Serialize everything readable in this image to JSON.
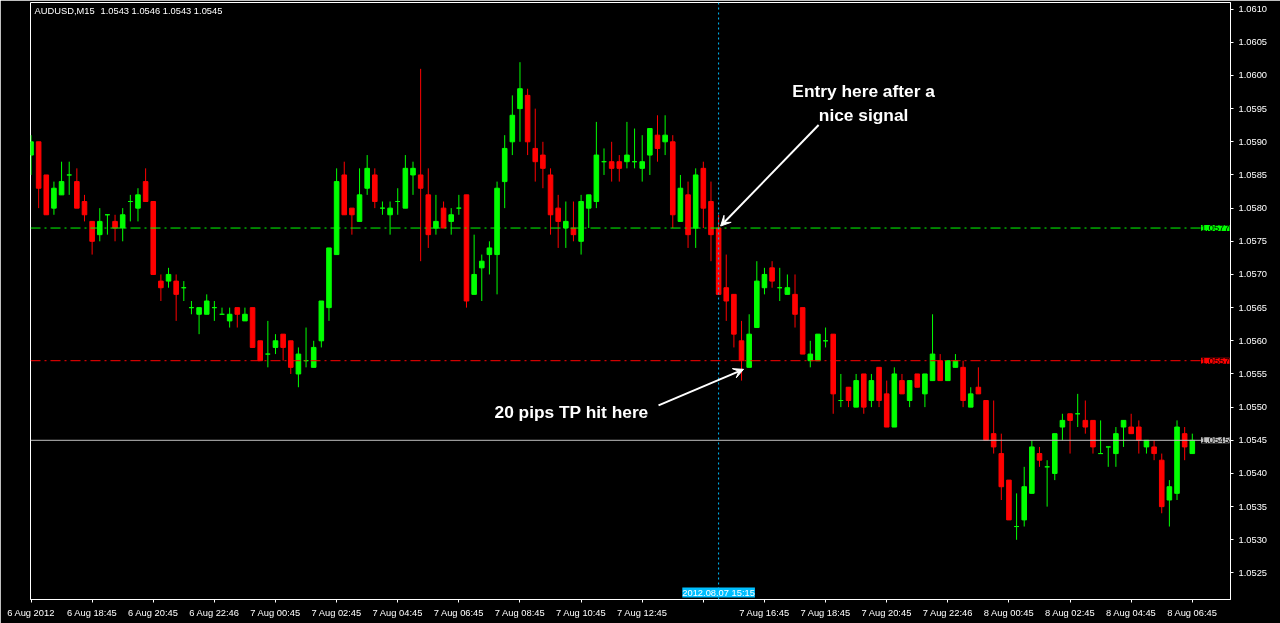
{
  "chart_data": {
    "type": "candlestick",
    "title": "AUDUSD,M15",
    "subtitle": "1.0543 1.0546 1.0543 1.0545",
    "x": [
      "2012-08-06T16:45",
      "2012-08-06T17:00",
      "2012-08-06T17:15",
      "2012-08-06T17:30",
      "2012-08-06T17:45",
      "2012-08-06T18:00",
      "2012-08-06T18:15",
      "2012-08-06T18:30",
      "2012-08-06T18:45",
      "2012-08-06T19:00",
      "2012-08-06T19:15",
      "2012-08-06T19:30",
      "2012-08-06T19:45",
      "2012-08-06T20:00",
      "2012-08-06T20:15",
      "2012-08-06T20:30",
      "2012-08-06T20:45",
      "2012-08-06T21:00",
      "2012-08-06T21:15",
      "2012-08-06T21:30",
      "2012-08-06T21:45",
      "2012-08-06T22:00",
      "2012-08-06T22:15",
      "2012-08-06T22:30",
      "2012-08-06T22:45",
      "2012-08-06T23:00",
      "2012-08-06T23:15",
      "2012-08-06T23:30",
      "2012-08-06T23:45",
      "2012-08-07T00:00",
      "2012-08-07T00:15",
      "2012-08-07T00:30",
      "2012-08-07T00:45",
      "2012-08-07T01:00",
      "2012-08-07T01:15",
      "2012-08-07T01:30",
      "2012-08-07T01:45",
      "2012-08-07T02:00",
      "2012-08-07T02:15",
      "2012-08-07T02:30",
      "2012-08-07T02:45",
      "2012-08-07T03:00",
      "2012-08-07T03:15",
      "2012-08-07T03:30",
      "2012-08-07T03:45",
      "2012-08-07T04:00",
      "2012-08-07T04:15",
      "2012-08-07T04:30",
      "2012-08-07T04:45",
      "2012-08-07T05:00",
      "2012-08-07T05:15",
      "2012-08-07T05:30",
      "2012-08-07T05:45",
      "2012-08-07T06:00",
      "2012-08-07T06:15",
      "2012-08-07T06:30",
      "2012-08-07T06:45",
      "2012-08-07T07:00",
      "2012-08-07T07:15",
      "2012-08-07T07:30",
      "2012-08-07T07:45",
      "2012-08-07T08:00",
      "2012-08-07T08:15",
      "2012-08-07T08:30",
      "2012-08-07T08:45",
      "2012-08-07T09:00",
      "2012-08-07T09:15",
      "2012-08-07T09:30",
      "2012-08-07T09:45",
      "2012-08-07T10:00",
      "2012-08-07T10:15",
      "2012-08-07T10:30",
      "2012-08-07T10:45",
      "2012-08-07T11:00",
      "2012-08-07T11:15",
      "2012-08-07T11:30",
      "2012-08-07T11:45",
      "2012-08-07T12:00",
      "2012-08-07T12:15",
      "2012-08-07T12:30",
      "2012-08-07T12:45",
      "2012-08-07T13:00",
      "2012-08-07T13:15",
      "2012-08-07T13:30",
      "2012-08-07T13:45",
      "2012-08-07T14:00",
      "2012-08-07T14:15",
      "2012-08-07T14:30",
      "2012-08-07T14:45",
      "2012-08-07T15:00",
      "2012-08-07T15:15",
      "2012-08-07T15:30",
      "2012-08-07T15:45",
      "2012-08-07T16:00",
      "2012-08-07T16:15",
      "2012-08-07T16:30",
      "2012-08-07T16:45",
      "2012-08-07T17:00",
      "2012-08-07T17:15",
      "2012-08-07T17:30",
      "2012-08-07T17:45",
      "2012-08-07T18:00",
      "2012-08-07T18:15",
      "2012-08-07T18:30",
      "2012-08-07T18:45",
      "2012-08-07T19:00",
      "2012-08-07T19:15",
      "2012-08-07T19:30",
      "2012-08-07T19:45",
      "2012-08-07T20:00",
      "2012-08-07T20:15",
      "2012-08-07T20:30",
      "2012-08-07T20:45",
      "2012-08-07T21:00",
      "2012-08-07T21:15",
      "2012-08-07T21:30",
      "2012-08-07T21:45",
      "2012-08-07T22:00",
      "2012-08-07T22:15",
      "2012-08-07T22:30",
      "2012-08-07T22:45",
      "2012-08-07T23:00",
      "2012-08-07T23:15",
      "2012-08-07T23:30",
      "2012-08-07T23:45",
      "2012-08-08T00:00",
      "2012-08-08T00:15",
      "2012-08-08T00:30",
      "2012-08-08T00:45",
      "2012-08-08T01:00",
      "2012-08-08T01:15",
      "2012-08-08T01:30",
      "2012-08-08T01:45",
      "2012-08-08T02:00",
      "2012-08-08T02:15",
      "2012-08-08T02:30",
      "2012-08-08T02:45",
      "2012-08-08T03:00",
      "2012-08-08T03:15",
      "2012-08-08T03:30",
      "2012-08-08T03:45",
      "2012-08-08T04:00",
      "2012-08-08T04:15",
      "2012-08-08T04:30",
      "2012-08-08T04:45",
      "2012-08-08T05:00",
      "2012-08-08T05:15",
      "2012-08-08T05:30",
      "2012-08-08T05:45",
      "2012-08-08T06:00",
      "2012-08-08T06:15",
      "2012-08-08T06:30",
      "2012-08-08T06:45"
    ],
    "ohlc": [
      [
        1.0588,
        1.0591,
        1.0585,
        1.059
      ],
      [
        1.059,
        1.059,
        1.058,
        1.0583
      ],
      [
        1.0585,
        1.0585,
        1.0579,
        1.0579
      ],
      [
        1.058,
        1.0584,
        1.0579,
        1.0583
      ],
      [
        1.0582,
        1.0587,
        1.0582,
        1.0584
      ],
      [
        1.0585,
        1.0587,
        1.0582,
        1.0585
      ],
      [
        1.0584,
        1.0586,
        1.058,
        1.058
      ],
      [
        1.0581,
        1.0582,
        1.0578,
        1.0579
      ],
      [
        1.0578,
        1.0578,
        1.0573,
        1.0575
      ],
      [
        1.0576,
        1.058,
        1.0575,
        1.0578
      ],
      [
        1.0579,
        1.0579,
        1.0576,
        1.0579
      ],
      [
        1.0578,
        1.0579,
        1.0575,
        1.0577
      ],
      [
        1.0577,
        1.058,
        1.0575,
        1.0579
      ],
      [
        1.0581,
        1.0582,
        1.0578,
        1.0581
      ],
      [
        1.058,
        1.0583,
        1.0578,
        1.0582
      ],
      [
        1.0584,
        1.0586,
        1.0581,
        1.0581
      ],
      [
        1.0581,
        1.0581,
        1.057,
        1.057
      ],
      [
        1.0569,
        1.057,
        1.0566,
        1.0568
      ],
      [
        1.0569,
        1.0571,
        1.0568,
        1.057
      ],
      [
        1.0569,
        1.057,
        1.0563,
        1.0567
      ],
      [
        1.0568,
        1.0569,
        1.0566,
        1.0568
      ],
      [
        1.0565,
        1.0566,
        1.0564,
        1.0565
      ],
      [
        1.0564,
        1.0565,
        1.0561,
        1.0565
      ],
      [
        1.0564,
        1.0567,
        1.0564,
        1.0566
      ],
      [
        1.0565,
        1.0566,
        1.0563,
        1.0565
      ],
      [
        1.0564,
        1.0565,
        1.0564,
        1.0564
      ],
      [
        1.0563,
        1.0565,
        1.0562,
        1.0564
      ],
      [
        1.0565,
        1.0565,
        1.0562,
        1.0564
      ],
      [
        1.0563,
        1.0565,
        1.0563,
        1.0564
      ],
      [
        1.0565,
        1.0565,
        1.0559,
        1.0559
      ],
      [
        1.056,
        1.056,
        1.0557,
        1.0557
      ],
      [
        1.0558,
        1.0563,
        1.0556,
        1.0558
      ],
      [
        1.0559,
        1.0561,
        1.0558,
        1.056
      ],
      [
        1.0561,
        1.0561,
        1.0557,
        1.0559
      ],
      [
        1.056,
        1.056,
        1.0555,
        1.0556
      ],
      [
        1.0555,
        1.0559,
        1.0553,
        1.0558
      ],
      [
        1.0557,
        1.0562,
        1.0556,
        1.0557
      ],
      [
        1.0556,
        1.056,
        1.0556,
        1.0559
      ],
      [
        1.056,
        1.0566,
        1.0559,
        1.0566
      ],
      [
        1.0565,
        1.0574,
        1.0563,
        1.0574
      ],
      [
        1.0573,
        1.0586,
        1.0573,
        1.0584
      ],
      [
        1.0585,
        1.0587,
        1.0579,
        1.0579
      ],
      [
        1.058,
        1.058,
        1.0576,
        1.0579
      ],
      [
        1.0578,
        1.0586,
        1.0578,
        1.0582
      ],
      [
        1.0583,
        1.0588,
        1.0582,
        1.0586
      ],
      [
        1.0585,
        1.0586,
        1.058,
        1.0581
      ],
      [
        1.058,
        1.0581,
        1.0579,
        1.058
      ],
      [
        1.0579,
        1.0581,
        1.0576,
        1.058
      ],
      [
        1.0581,
        1.0583,
        1.0579,
        1.0581
      ],
      [
        1.058,
        1.0588,
        1.058,
        1.0586
      ],
      [
        1.0585,
        1.0587,
        1.0582,
        1.0586
      ],
      [
        1.0585,
        1.0601,
        1.0572,
        1.0583
      ],
      [
        1.0582,
        1.0586,
        1.0574,
        1.0576
      ],
      [
        1.0577,
        1.0582,
        1.0576,
        1.0578
      ],
      [
        1.058,
        1.0581,
        1.0577,
        1.0577
      ],
      [
        1.0578,
        1.058,
        1.0576,
        1.0579
      ],
      [
        1.058,
        1.0582,
        1.0579,
        1.058
      ],
      [
        1.0582,
        1.0582,
        1.0565,
        1.0566
      ],
      [
        1.0567,
        1.0576,
        1.0567,
        1.057
      ],
      [
        1.0571,
        1.0573,
        1.0566,
        1.0572
      ],
      [
        1.0573,
        1.0575,
        1.057,
        1.0574
      ],
      [
        1.0573,
        1.0584,
        1.0567,
        1.0583
      ],
      [
        1.0584,
        1.0591,
        1.058,
        1.0589
      ],
      [
        1.059,
        1.0597,
        1.0588,
        1.0594
      ],
      [
        1.0595,
        1.0602,
        1.059,
        1.0598
      ],
      [
        1.0597,
        1.0598,
        1.0588,
        1.059
      ],
      [
        1.0589,
        1.0595,
        1.0584,
        1.0587
      ],
      [
        1.0588,
        1.059,
        1.0583,
        1.0586
      ],
      [
        1.0585,
        1.0586,
        1.0576,
        1.0579
      ],
      [
        1.058,
        1.0582,
        1.0574,
        1.0578
      ],
      [
        1.0577,
        1.0581,
        1.0574,
        1.0578
      ],
      [
        1.0577,
        1.0581,
        1.0575,
        1.0576
      ],
      [
        1.0575,
        1.0582,
        1.0573,
        1.0581
      ],
      [
        1.058,
        1.0582,
        1.0577,
        1.0582
      ],
      [
        1.0581,
        1.0593,
        1.058,
        1.0588
      ],
      [
        1.0587,
        1.0589,
        1.0585,
        1.0587
      ],
      [
        1.0587,
        1.059,
        1.0584,
        1.0586
      ],
      [
        1.0587,
        1.0588,
        1.0584,
        1.0586
      ],
      [
        1.0587,
        1.0593,
        1.0586,
        1.0588
      ],
      [
        1.0587,
        1.0592,
        1.0586,
        1.0587
      ],
      [
        1.0586,
        1.0591,
        1.0584,
        1.0587
      ],
      [
        1.0588,
        1.0592,
        1.0585,
        1.0592
      ],
      [
        1.0591,
        1.0594,
        1.0587,
        1.0589
      ],
      [
        1.059,
        1.0594,
        1.0588,
        1.0591
      ],
      [
        1.059,
        1.0591,
        1.0577,
        1.0579
      ],
      [
        1.0578,
        1.0585,
        1.0578,
        1.0583
      ],
      [
        1.0582,
        1.0584,
        1.0574,
        1.0576
      ],
      [
        1.0577,
        1.0586,
        1.0574,
        1.0585
      ],
      [
        1.0586,
        1.0587,
        1.0577,
        1.058
      ],
      [
        1.0581,
        1.0584,
        1.0572,
        1.0576
      ],
      [
        1.0577,
        1.0579,
        1.0567,
        1.0567
      ],
      [
        1.0568,
        1.0573,
        1.0563,
        1.0566
      ],
      [
        1.0567,
        1.0567,
        1.0559,
        1.0561
      ],
      [
        1.056,
        1.0563,
        1.0554,
        1.0557
      ],
      [
        1.0556,
        1.0564,
        1.0556,
        1.0561
      ],
      [
        1.0562,
        1.0572,
        1.0562,
        1.0569
      ],
      [
        1.0568,
        1.0571,
        1.0567,
        1.057
      ],
      [
        1.0571,
        1.0572,
        1.0568,
        1.0569
      ],
      [
        1.0568,
        1.0571,
        1.0566,
        1.0568
      ],
      [
        1.0567,
        1.057,
        1.0567,
        1.0568
      ],
      [
        1.0567,
        1.057,
        1.0562,
        1.0564
      ],
      [
        1.0565,
        1.0565,
        1.0558,
        1.0558
      ],
      [
        1.0557,
        1.056,
        1.0556,
        1.0558
      ],
      [
        1.0557,
        1.0561,
        1.0557,
        1.0561
      ],
      [
        1.056,
        1.0562,
        1.0559,
        1.056
      ],
      [
        1.0561,
        1.0561,
        1.0549,
        1.0552
      ],
      [
        1.0551,
        1.0555,
        1.055,
        1.0551
      ],
      [
        1.0553,
        1.0553,
        1.055,
        1.0551
      ],
      [
        1.055,
        1.0555,
        1.055,
        1.0554
      ],
      [
        1.0555,
        1.0555,
        1.0549,
        1.055
      ],
      [
        1.0551,
        1.0555,
        1.055,
        1.0554
      ],
      [
        1.0556,
        1.0556,
        1.055,
        1.0551
      ],
      [
        1.0552,
        1.0554,
        1.0547,
        1.0547
      ],
      [
        1.0547,
        1.0556,
        1.0547,
        1.0555
      ],
      [
        1.0554,
        1.0555,
        1.0552,
        1.0552
      ],
      [
        1.0551,
        1.0554,
        1.055,
        1.0554
      ],
      [
        1.0555,
        1.0555,
        1.0553,
        1.0553
      ],
      [
        1.0552,
        1.0555,
        1.055,
        1.0555
      ],
      [
        1.0554,
        1.0564,
        1.0554,
        1.0558
      ],
      [
        1.0557,
        1.0558,
        1.0554,
        1.0554
      ],
      [
        1.0554,
        1.0557,
        1.0554,
        1.0557
      ],
      [
        1.0556,
        1.0558,
        1.0556,
        1.0557
      ],
      [
        1.0556,
        1.0557,
        1.055,
        1.0551
      ],
      [
        1.055,
        1.0553,
        1.055,
        1.0552
      ],
      [
        1.0553,
        1.0556,
        1.0552,
        1.0552
      ],
      [
        1.0551,
        1.0551,
        1.0545,
        1.0545
      ],
      [
        1.0546,
        1.0551,
        1.0543,
        1.0544
      ],
      [
        1.0543,
        1.0546,
        1.0536,
        1.0538
      ],
      [
        1.0539,
        1.0539,
        1.0533,
        1.0533
      ],
      [
        1.0532,
        1.0537,
        1.053,
        1.0532
      ],
      [
        1.0533,
        1.0541,
        1.0532,
        1.0538
      ],
      [
        1.0537,
        1.0545,
        1.0537,
        1.0544
      ],
      [
        1.0543,
        1.0544,
        1.0541,
        1.0542
      ],
      [
        1.0541,
        1.0542,
        1.0535,
        1.0541
      ],
      [
        1.054,
        1.0546,
        1.0539,
        1.0546
      ],
      [
        1.0547,
        1.0549,
        1.0545,
        1.0548
      ],
      [
        1.0549,
        1.0549,
        1.0543,
        1.0548
      ],
      [
        1.0549,
        1.0552,
        1.0547,
        1.0549
      ],
      [
        1.0548,
        1.0551,
        1.0546,
        1.0547
      ],
      [
        1.0548,
        1.0548,
        1.0543,
        1.0544
      ],
      [
        1.0543,
        1.0548,
        1.0543,
        1.0543
      ],
      [
        1.0544,
        1.0544,
        1.0541,
        1.0544
      ],
      [
        1.0543,
        1.0547,
        1.0541,
        1.0546
      ],
      [
        1.0547,
        1.0548,
        1.0544,
        1.0548
      ],
      [
        1.0547,
        1.0549,
        1.0546,
        1.0546
      ],
      [
        1.0547,
        1.0548,
        1.0543,
        1.0545
      ],
      [
        1.0544,
        1.0545,
        1.0543,
        1.0545
      ],
      [
        1.0544,
        1.0545,
        1.0542,
        1.0543
      ],
      [
        1.0542,
        1.0543,
        1.0534,
        1.0535
      ],
      [
        1.0536,
        1.0539,
        1.0532,
        1.0538
      ],
      [
        1.0537,
        1.0548,
        1.0536,
        1.0547
      ],
      [
        1.0546,
        1.0547,
        1.0542,
        1.0544
      ],
      [
        1.0543,
        1.0546,
        1.0543,
        1.0545
      ]
    ],
    "colors": [
      "#00ff00",
      "#ff0000",
      "#ff0000",
      "#00ff00",
      "#00ff00",
      "#00ff00",
      "#ff0000",
      "#ff0000",
      "#ff0000",
      "#00ff00",
      "#00ff00",
      "#ff0000",
      "#00ff00",
      "#00ff00",
      "#00ff00",
      "#ff0000",
      "#ff0000",
      "#ff0000",
      "#00ff00",
      "#ff0000",
      "#00ff00",
      "#00ff00",
      "#00ff00",
      "#00ff00",
      "#00ff00",
      "#00ff00",
      "#00ff00",
      "#ff0000",
      "#00ff00",
      "#ff0000",
      "#ff0000",
      "#00ff00",
      "#00ff00",
      "#ff0000",
      "#ff0000",
      "#00ff00",
      "#00ff00",
      "#00ff00",
      "#00ff00",
      "#00ff00",
      "#00ff00",
      "#ff0000",
      "#ff0000",
      "#00ff00",
      "#00ff00",
      "#ff0000",
      "#00ff00",
      "#00ff00",
      "#00ff00",
      "#00ff00",
      "#00ff00",
      "#ff0000",
      "#ff0000",
      "#00ff00",
      "#ff0000",
      "#00ff00",
      "#00ff00",
      "#ff0000",
      "#00ff00",
      "#00ff00",
      "#00ff00",
      "#00ff00",
      "#00ff00",
      "#00ff00",
      "#00ff00",
      "#ff0000",
      "#ff0000",
      "#ff0000",
      "#ff0000",
      "#ff0000",
      "#00ff00",
      "#ff0000",
      "#00ff00",
      "#00ff00",
      "#00ff00",
      "#00ff00",
      "#ff0000",
      "#ff0000",
      "#00ff00",
      "#00ff00",
      "#00ff00",
      "#00ff00",
      "#ff0000",
      "#00ff00",
      "#ff0000",
      "#00ff00",
      "#ff0000",
      "#00ff00",
      "#ff0000",
      "#ff0000",
      "#ff0000",
      "#ff0000",
      "#ff0000",
      "#ff0000",
      "#00ff00",
      "#00ff00",
      "#00ff00",
      "#ff0000",
      "#00ff00",
      "#00ff00",
      "#ff0000",
      "#ff0000",
      "#00ff00",
      "#00ff00",
      "#00ff00",
      "#ff0000",
      "#00ff00",
      "#ff0000",
      "#00ff00",
      "#ff0000",
      "#00ff00",
      "#ff0000",
      "#ff0000",
      "#00ff00",
      "#ff0000",
      "#00ff00",
      "#ff0000",
      "#00ff00",
      "#00ff00",
      "#ff0000",
      "#00ff00",
      "#00ff00",
      "#ff0000",
      "#00ff00",
      "#ff0000",
      "#ff0000",
      "#ff0000",
      "#ff0000",
      "#ff0000",
      "#00ff00",
      "#00ff00",
      "#00ff00",
      "#ff0000",
      "#00ff00",
      "#00ff00",
      "#00ff00",
      "#ff0000",
      "#00ff00",
      "#ff0000",
      "#ff0000",
      "#00ff00",
      "#00ff00",
      "#00ff00",
      "#00ff00",
      "#ff0000",
      "#ff0000",
      "#00ff00",
      "#ff0000",
      "#ff0000",
      "#00ff00",
      "#00ff00",
      "#ff0000",
      "#00ff00"
    ],
    "xlim": [
      "2012-08-06T16:44",
      "2012-08-08T08:00"
    ],
    "xticks": [
      {
        "value": "2012-08-06T16:45",
        "label": "6 Aug 2012"
      },
      {
        "value": "2012-08-06T18:45",
        "label": "6 Aug 18:45"
      },
      {
        "value": "2012-08-06T20:45",
        "label": "6 Aug 20:45"
      },
      {
        "value": "2012-08-06T22:45",
        "label": "6 Aug 22:46"
      },
      {
        "value": "2012-08-07T00:45",
        "label": "7 Aug 00:45"
      },
      {
        "value": "2012-08-07T02:45",
        "label": "7 Aug 02:45"
      },
      {
        "value": "2012-08-07T04:45",
        "label": "7 Aug 04:45"
      },
      {
        "value": "2012-08-07T06:45",
        "label": "7 Aug 06:45"
      },
      {
        "value": "2012-08-07T08:45",
        "label": "7 Aug 08:45"
      },
      {
        "value": "2012-08-07T10:45",
        "label": "7 Aug 10:45"
      },
      {
        "value": "2012-08-07T12:45",
        "label": "7 Aug 12:45"
      },
      {
        "value": "2012-08-07T14:45",
        "label": null
      },
      {
        "value": "2012-08-07T16:45",
        "label": "7 Aug 16:45"
      },
      {
        "value": "2012-08-07T18:45",
        "label": "7 Aug 18:45"
      },
      {
        "value": "2012-08-07T20:45",
        "label": "7 Aug 20:45"
      },
      {
        "value": "2012-08-07T22:45",
        "label": "7 Aug 22:46"
      },
      {
        "value": "2012-08-08T00:45",
        "label": "8 Aug 00:45"
      },
      {
        "value": "2012-08-08T02:45",
        "label": "8 Aug 02:45"
      },
      {
        "value": "2012-08-08T04:45",
        "label": "8 Aug 04:45"
      },
      {
        "value": "2012-08-08T06:45",
        "label": "8 Aug 06:45"
      }
    ],
    "ylim": [
      1.0521,
      1.0611
    ],
    "yticks": [
      1.0525,
      {
        "value": 1.053,
        "label": "1.0530"
      },
      1.0535,
      {
        "value": 1.054,
        "label": "1.0540"
      },
      1.0545,
      {
        "value": 1.055,
        "label": "1.0550"
      },
      1.0555,
      {
        "value": 1.056,
        "label": "1.0560"
      },
      1.0565,
      {
        "value": 1.057,
        "label": "1.0570"
      },
      1.0575,
      {
        "value": 1.058,
        "label": "1.0580"
      },
      1.0585,
      {
        "value": 1.059,
        "label": "1.0590"
      },
      1.0595,
      {
        "value": 1.06,
        "label": "1.0600"
      },
      1.0605,
      {
        "value": 1.061,
        "label": "1.0610"
      }
    ],
    "ref_lines": [
      {
        "axis": "y",
        "value": 1.0577,
        "label": "1.0577",
        "color": "#00ff00",
        "line_style": "dashed"
      },
      {
        "axis": "y",
        "value": 1.0557,
        "label": "1.0557",
        "color": "#ff0000",
        "line_style": "dashed"
      },
      {
        "axis": "y",
        "value": 1.0545,
        "label": "1.0545",
        "color": "#c0c0c0",
        "line_style": "solid"
      },
      {
        "axis": "x",
        "value": "2012-08-07T15:15",
        "label": "2012.08.07 15:15",
        "color": "#00bfff",
        "line_style": "dotted"
      }
    ],
    "annotations": [
      {
        "text": "Entry here after a\nnice signal",
        "x": "2012-08-07T15:15",
        "y": 1.0577
      },
      {
        "text": "20 pips TP hit here",
        "x": "2012-08-07T16:00",
        "y": 1.0556
      }
    ]
  }
}
